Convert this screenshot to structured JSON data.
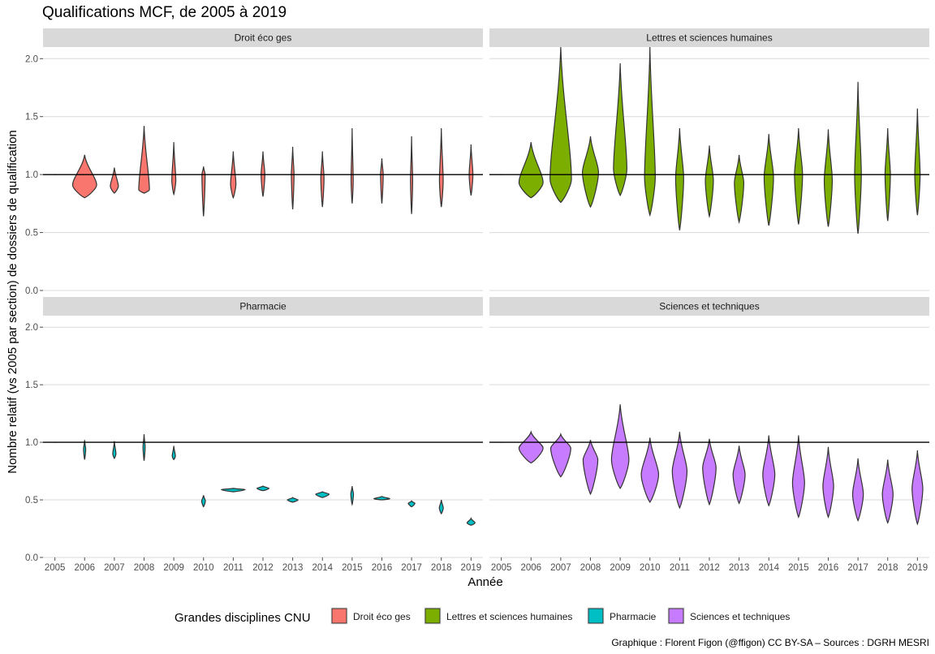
{
  "chart_data": {
    "type": "violin",
    "title": "Qualifications MCF, de 2005 à 2019",
    "xlabel": "Année",
    "ylabel": "Nombre relatif (vs 2005 par section) de dossiers de qualification",
    "caption": "Graphique : Florent Figon (@ffigon) CC BY-SA – Sources : DGRH MESRI",
    "categories": [
      "2005",
      "2006",
      "2007",
      "2008",
      "2009",
      "2010",
      "2011",
      "2012",
      "2013",
      "2014",
      "2015",
      "2016",
      "2017",
      "2018",
      "2019"
    ],
    "ylim": [
      0,
      2.1
    ],
    "yticks": [
      "0.0",
      "0.5",
      "1.0",
      "1.5",
      "2.0"
    ],
    "reference_line": 1.0,
    "grid": true,
    "legend": {
      "title": "Grandes disciplines CNU",
      "position": "bottom",
      "entries": [
        {
          "name": "Droit éco ges",
          "color": "#F8766D"
        },
        {
          "name": "Lettres et sciences humaines",
          "color": "#7CAE00"
        },
        {
          "name": "Pharmacie",
          "color": "#00BFC4"
        },
        {
          "name": "Sciences et techniques",
          "color": "#C77CFF"
        }
      ]
    },
    "panels": [
      {
        "name": "Droit éco ges",
        "color": "#F8766D",
        "violins": [
          {
            "year": "2005",
            "min": 1.0,
            "max": 1.0,
            "mode": 1.0,
            "width": 0.05
          },
          {
            "year": "2006",
            "min": 0.8,
            "max": 1.17,
            "mode": 0.91,
            "width": 0.9
          },
          {
            "year": "2007",
            "min": 0.84,
            "max": 1.06,
            "mode": 0.9,
            "width": 0.3
          },
          {
            "year": "2008",
            "min": 0.84,
            "max": 1.42,
            "mode": 0.87,
            "width": 0.4
          },
          {
            "year": "2009",
            "min": 0.83,
            "max": 1.28,
            "mode": 0.95,
            "width": 0.15
          },
          {
            "year": "2010",
            "min": 0.64,
            "max": 1.07,
            "mode": 1.0,
            "width": 0.12
          },
          {
            "year": "2011",
            "min": 0.8,
            "max": 1.2,
            "mode": 0.92,
            "width": 0.2
          },
          {
            "year": "2012",
            "min": 0.81,
            "max": 1.2,
            "mode": 1.0,
            "width": 0.14
          },
          {
            "year": "2013",
            "min": 0.7,
            "max": 1.24,
            "mode": 1.0,
            "width": 0.1
          },
          {
            "year": "2014",
            "min": 0.72,
            "max": 1.2,
            "mode": 0.97,
            "width": 0.12
          },
          {
            "year": "2015",
            "min": 0.75,
            "max": 1.4,
            "mode": 0.95,
            "width": 0.08
          },
          {
            "year": "2016",
            "min": 0.75,
            "max": 1.14,
            "mode": 1.0,
            "width": 0.1
          },
          {
            "year": "2017",
            "min": 0.66,
            "max": 1.33,
            "mode": 0.95,
            "width": 0.08
          },
          {
            "year": "2018",
            "min": 0.72,
            "max": 1.4,
            "mode": 0.95,
            "width": 0.14
          },
          {
            "year": "2019",
            "min": 0.82,
            "max": 1.26,
            "mode": 1.0,
            "width": 0.14
          }
        ]
      },
      {
        "name": "Lettres et sciences humaines",
        "color": "#7CAE00",
        "violins": [
          {
            "year": "2005",
            "min": 1.0,
            "max": 1.0,
            "mode": 1.0,
            "width": 0.05
          },
          {
            "year": "2006",
            "min": 0.8,
            "max": 1.28,
            "mode": 0.93,
            "width": 0.9
          },
          {
            "year": "2007",
            "min": 0.76,
            "max": 2.1,
            "mode": 0.96,
            "width": 0.8
          },
          {
            "year": "2008",
            "min": 0.72,
            "max": 1.33,
            "mode": 1.02,
            "width": 0.6
          },
          {
            "year": "2009",
            "min": 0.82,
            "max": 1.96,
            "mode": 1.05,
            "width": 0.5
          },
          {
            "year": "2010",
            "min": 0.65,
            "max": 2.1,
            "mode": 0.98,
            "width": 0.4
          },
          {
            "year": "2011",
            "min": 0.52,
            "max": 1.4,
            "mode": 0.97,
            "width": 0.3
          },
          {
            "year": "2012",
            "min": 0.64,
            "max": 1.25,
            "mode": 0.95,
            "width": 0.3
          },
          {
            "year": "2013",
            "min": 0.59,
            "max": 1.17,
            "mode": 0.93,
            "width": 0.35
          },
          {
            "year": "2014",
            "min": 0.56,
            "max": 1.35,
            "mode": 0.98,
            "width": 0.35
          },
          {
            "year": "2015",
            "min": 0.57,
            "max": 1.4,
            "mode": 1.0,
            "width": 0.3
          },
          {
            "year": "2016",
            "min": 0.55,
            "max": 1.39,
            "mode": 0.95,
            "width": 0.3
          },
          {
            "year": "2017",
            "min": 0.49,
            "max": 1.8,
            "mode": 1.0,
            "width": 0.25
          },
          {
            "year": "2018",
            "min": 0.6,
            "max": 1.4,
            "mode": 1.0,
            "width": 0.2
          },
          {
            "year": "2019",
            "min": 0.65,
            "max": 1.57,
            "mode": 1.0,
            "width": 0.2
          }
        ]
      },
      {
        "name": "Pharmacie",
        "color": "#00BFC4",
        "violins": [
          {
            "year": "2005",
            "min": 1.0,
            "max": 1.0,
            "mode": 1.0,
            "width": 0.05
          },
          {
            "year": "2006",
            "min": 0.85,
            "max": 1.02,
            "mode": 0.94,
            "width": 0.08
          },
          {
            "year": "2007",
            "min": 0.86,
            "max": 1.01,
            "mode": 0.9,
            "width": 0.12
          },
          {
            "year": "2008",
            "min": 0.84,
            "max": 1.07,
            "mode": 0.96,
            "width": 0.08
          },
          {
            "year": "2009",
            "min": 0.85,
            "max": 0.97,
            "mode": 0.88,
            "width": 0.12
          },
          {
            "year": "2010",
            "min": 0.44,
            "max": 0.54,
            "mode": 0.49,
            "width": 0.14
          },
          {
            "year": "2011",
            "min": 0.57,
            "max": 0.6,
            "mode": 0.59,
            "width": 0.9
          },
          {
            "year": "2012",
            "min": 0.58,
            "max": 0.62,
            "mode": 0.6,
            "width": 0.45
          },
          {
            "year": "2013",
            "min": 0.48,
            "max": 0.52,
            "mode": 0.5,
            "width": 0.4
          },
          {
            "year": "2014",
            "min": 0.52,
            "max": 0.57,
            "mode": 0.55,
            "width": 0.5
          },
          {
            "year": "2015",
            "min": 0.46,
            "max": 0.62,
            "mode": 0.55,
            "width": 0.1
          },
          {
            "year": "2016",
            "min": 0.5,
            "max": 0.53,
            "mode": 0.51,
            "width": 0.6
          },
          {
            "year": "2017",
            "min": 0.44,
            "max": 0.49,
            "mode": 0.47,
            "width": 0.25
          },
          {
            "year": "2018",
            "min": 0.38,
            "max": 0.5,
            "mode": 0.43,
            "width": 0.15
          },
          {
            "year": "2019",
            "min": 0.28,
            "max": 0.34,
            "mode": 0.3,
            "width": 0.3
          }
        ]
      },
      {
        "name": "Sciences et techniques",
        "color": "#C77CFF",
        "violins": [
          {
            "year": "2005",
            "min": 1.0,
            "max": 1.0,
            "mode": 1.0,
            "width": 0.05
          },
          {
            "year": "2006",
            "min": 0.82,
            "max": 1.09,
            "mode": 0.95,
            "width": 0.9
          },
          {
            "year": "2007",
            "min": 0.7,
            "max": 1.07,
            "mode": 0.95,
            "width": 0.75
          },
          {
            "year": "2008",
            "min": 0.55,
            "max": 1.02,
            "mode": 0.85,
            "width": 0.55
          },
          {
            "year": "2009",
            "min": 0.6,
            "max": 1.33,
            "mode": 0.85,
            "width": 0.65
          },
          {
            "year": "2010",
            "min": 0.48,
            "max": 1.04,
            "mode": 0.72,
            "width": 0.65
          },
          {
            "year": "2011",
            "min": 0.43,
            "max": 1.09,
            "mode": 0.75,
            "width": 0.55
          },
          {
            "year": "2012",
            "min": 0.46,
            "max": 1.03,
            "mode": 0.78,
            "width": 0.5
          },
          {
            "year": "2013",
            "min": 0.47,
            "max": 0.97,
            "mode": 0.72,
            "width": 0.45
          },
          {
            "year": "2014",
            "min": 0.45,
            "max": 1.06,
            "mode": 0.72,
            "width": 0.45
          },
          {
            "year": "2015",
            "min": 0.35,
            "max": 1.06,
            "mode": 0.65,
            "width": 0.45
          },
          {
            "year": "2016",
            "min": 0.35,
            "max": 0.96,
            "mode": 0.62,
            "width": 0.4
          },
          {
            "year": "2017",
            "min": 0.32,
            "max": 0.86,
            "mode": 0.55,
            "width": 0.4
          },
          {
            "year": "2018",
            "min": 0.3,
            "max": 0.85,
            "mode": 0.55,
            "width": 0.4
          },
          {
            "year": "2019",
            "min": 0.29,
            "max": 0.93,
            "mode": 0.6,
            "width": 0.4
          }
        ]
      }
    ]
  }
}
